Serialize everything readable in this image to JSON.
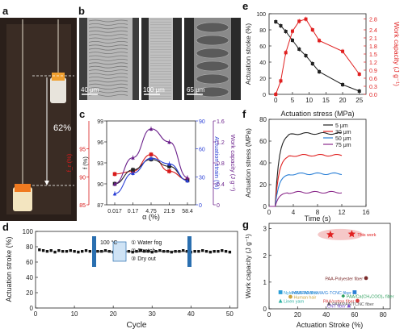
{
  "panels": {
    "a": {
      "letter": "a",
      "annotation": "62%"
    },
    "b": {
      "letter": "b",
      "scale_bars": [
        "40 μm",
        "100 μm",
        "65 μm"
      ]
    },
    "c": {
      "letter": "c"
    },
    "d": {
      "letter": "d",
      "inset_temp": "100 °C",
      "inset_steps": [
        "① Water fog",
        "② Stretch",
        "③ Dry out"
      ]
    },
    "e": {
      "letter": "e"
    },
    "f": {
      "letter": "f"
    },
    "g": {
      "letter": "g"
    }
  },
  "colors": {
    "black": "#222222",
    "red": "#e02020",
    "blue": "#2a3fd6",
    "purple": "#6a1f8a",
    "c_red": "#d81b1b",
    "navy": "#1f2a8a"
  },
  "chart_data": [
    {
      "panel": "c",
      "type": "line",
      "xlabel": "α (%)",
      "categories": [
        "0.017",
        "0.17",
        "4.75",
        "21.9",
        "58.4"
      ],
      "axes": [
        {
          "label": "f_r (%)",
          "ylim": [
            85,
            100
          ],
          "ticks": [
            85,
            90,
            95
          ]
        },
        {
          "label": "f (%)",
          "ylim": [
            87,
            99
          ],
          "ticks": [
            87,
            90,
            93,
            96,
            99
          ]
        },
        {
          "label": "Actuation strain (%)",
          "ylim": [
            0,
            90
          ],
          "ticks": [
            0,
            30,
            60,
            90
          ]
        },
        {
          "label": "Work capacity (J g⁻¹)",
          "ylim": [
            0.0,
            1.6
          ],
          "ticks": [
            0.0,
            0.4,
            0.8,
            1.2,
            1.6
          ]
        }
      ],
      "series": [
        {
          "axis": 0,
          "color": "#d81b1b",
          "values": [
            90.5,
            91.0,
            94.0,
            91.0,
            89.5
          ]
        },
        {
          "axis": 1,
          "color": "#222222",
          "values": [
            90.0,
            92.0,
            93.5,
            92.5,
            90.5
          ]
        },
        {
          "axis": 2,
          "color": "#2a3fd6",
          "values": [
            12,
            34,
            50,
            44,
            26
          ]
        },
        {
          "axis": 3,
          "color": "#6a1f8a",
          "values": [
            0.4,
            0.9,
            1.45,
            1.2,
            0.52
          ]
        }
      ]
    },
    {
      "panel": "d",
      "type": "scatter",
      "xlabel": "Cycle",
      "ylabel": "Actuation stroke (%)",
      "xlim": [
        0,
        52
      ],
      "ylim": [
        0,
        100
      ],
      "xticks": [
        0,
        10,
        20,
        30,
        40,
        50
      ],
      "yticks": [
        0,
        20,
        40,
        60,
        80,
        100
      ],
      "x": [
        1,
        2,
        3,
        4,
        5,
        6,
        7,
        8,
        9,
        10,
        11,
        12,
        13,
        14,
        15,
        16,
        17,
        18,
        19,
        20,
        21,
        22,
        23,
        24,
        25,
        26,
        27,
        28,
        29,
        30,
        31,
        32,
        33,
        34,
        35,
        36,
        37,
        38,
        39,
        40,
        41,
        42,
        43,
        44,
        45,
        46,
        47,
        48,
        49,
        50
      ],
      "y": [
        76,
        75,
        74,
        75,
        73,
        75,
        74,
        74,
        75,
        74,
        73,
        74,
        75,
        74,
        73,
        74,
        74,
        75,
        74,
        73,
        74,
        75,
        74,
        74,
        73,
        74,
        75,
        74,
        74,
        73,
        74,
        75,
        74,
        74,
        73,
        74,
        74,
        75,
        74,
        73,
        74,
        74,
        75,
        74,
        73,
        74,
        74,
        75,
        74,
        73
      ]
    },
    {
      "panel": "e",
      "type": "line",
      "xlabel": "Actuation stress (MPa)",
      "xlim": [
        -2,
        27
      ],
      "xticks": [
        0,
        5,
        10,
        15,
        20,
        25
      ],
      "axes": [
        {
          "label": "Actuation stroke (%)",
          "ylim": [
            0,
            100
          ],
          "ticks": [
            0,
            20,
            40,
            60,
            80,
            100
          ]
        },
        {
          "label": "Work capacity (J g⁻¹)",
          "ylim": [
            0.0,
            3.0
          ],
          "ticks": [
            0.0,
            0.3,
            0.6,
            0.9,
            1.2,
            1.5,
            1.8,
            2.1,
            2.4,
            2.8
          ]
        }
      ],
      "series": [
        {
          "axis": 0,
          "color": "#222222",
          "x": [
            0,
            1.5,
            3,
            5,
            7,
            9,
            11,
            13,
            20,
            25
          ],
          "values": [
            90,
            85,
            78,
            67,
            56,
            48,
            38,
            28,
            12,
            4
          ]
        },
        {
          "axis": 1,
          "color": "#e02020",
          "x": [
            0,
            1.5,
            3,
            5,
            7,
            9,
            11,
            13,
            20,
            25
          ],
          "values": [
            0.0,
            0.5,
            1.55,
            2.35,
            2.72,
            2.8,
            2.4,
            2.0,
            1.6,
            0.75
          ]
        }
      ]
    },
    {
      "panel": "f",
      "type": "line",
      "xlabel": "Time (s)",
      "ylabel": "Actuation stress (MPa)",
      "xlim": [
        0,
        16
      ],
      "ylim": [
        0,
        80
      ],
      "xticks": [
        0,
        4,
        8,
        12,
        16
      ],
      "yticks": [
        0,
        20,
        40,
        60,
        80
      ],
      "series": [
        {
          "name": "5 μm",
          "color": "#222222",
          "plateau": 67
        },
        {
          "name": "30 μm",
          "color": "#e02020",
          "plateau": 47
        },
        {
          "name": "50 μm",
          "color": "#2a7fd6",
          "plateau": 30
        },
        {
          "name": "75 μm",
          "color": "#8b2a8b",
          "plateau": 13
        }
      ]
    },
    {
      "panel": "g",
      "type": "scatter",
      "xlabel": "Actuation Stroke (%)",
      "ylabel": "Work capacity (J g⁻¹)",
      "xlim": [
        0,
        85
      ],
      "ylim": [
        0,
        3.2
      ],
      "xticks": [
        0,
        20,
        40,
        60,
        80
      ],
      "yticks": [
        0,
        1,
        2,
        3
      ],
      "points": [
        {
          "label": "This work",
          "x": 58,
          "y": 2.8,
          "color": "#e02020",
          "marker": "star"
        },
        {
          "label": "",
          "x": 43,
          "y": 2.78,
          "color": "#e02020",
          "marker": "star"
        },
        {
          "label": "PAA-Polyester fiber",
          "x": 68,
          "y": 1.15,
          "color": "#7a2a2a",
          "marker": "circle"
        },
        {
          "label": "Nylon/BA-PA fiber",
          "x": 8,
          "y": 0.62,
          "color": "#2a9dd6",
          "marker": "square"
        },
        {
          "label": "Human hair",
          "x": 15,
          "y": 0.45,
          "color": "#c9a23a",
          "marker": "circle"
        },
        {
          "label": "Linen yarn",
          "x": 8,
          "y": 0.3,
          "color": "#2ab0a0",
          "marker": "triangle"
        },
        {
          "label": "PAM/PAA/PSMA/G-TCNC fiber",
          "x": 60,
          "y": 0.62,
          "color": "#2a7fd6",
          "marker": "square"
        },
        {
          "label": "PAA/Ca(CH₃COO)₂ fiber",
          "x": 52,
          "y": 0.48,
          "color": "#2a9d5a",
          "marker": "diamond"
        },
        {
          "label": "PAA/cotton fiber",
          "x": 62,
          "y": 0.3,
          "color": "#d63a3a",
          "marker": "circle"
        },
        {
          "label": "PAM/PAA/TCNC fiber",
          "x": 42,
          "y": 0.2,
          "color": "#555555",
          "marker": "triangle"
        },
        {
          "label": "CNT fiber",
          "x": 56,
          "y": 0.12,
          "color": "#7a4fd6",
          "marker": "triangle"
        }
      ]
    }
  ]
}
